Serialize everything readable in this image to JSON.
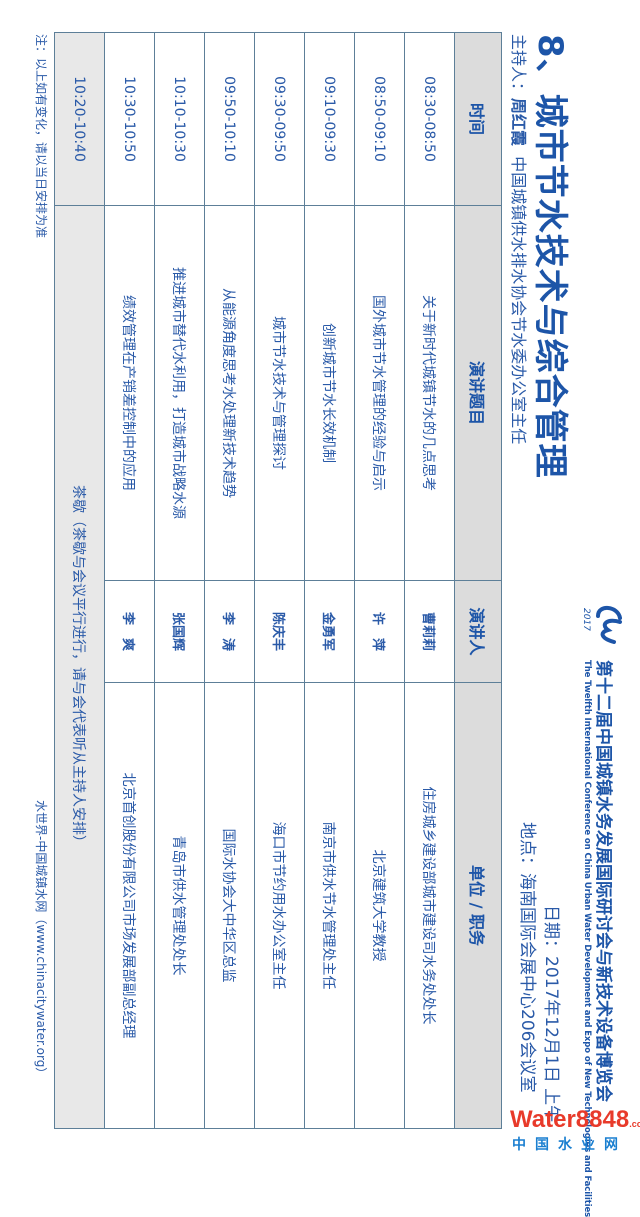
{
  "header": {
    "title": "8、城市节水技术与综合管理",
    "host_label": "主持人：",
    "host_name": "周红霞",
    "host_title": "中国城镇供水排水协会节水委办公室主任",
    "conference_cn": "第十二届中国城镇水务发展国际研讨会与新技术设备博览会",
    "conference_en": "The Twelfth International Conference on China Urban Water Development and Expo of New Technologies and Facilities",
    "date": "日期：2017年12月1日 上午",
    "location": "地点：海南国际会展中心206会议室",
    "logo_text": "cw 2017"
  },
  "table": {
    "columns": [
      "时间",
      "演讲题目",
      "演讲人",
      "单位 / 职务"
    ],
    "rows": [
      {
        "time": "08:30-08:50",
        "topic": "关于新时代城镇节水的几点思考",
        "speaker": "曹莉莉",
        "unit": "住房城乡建设部城市建设司水务处处长"
      },
      {
        "time": "08:50-09:10",
        "topic": "国外城市节水管理的经验与启示",
        "speaker": "许　萍",
        "unit": "北京建筑大学教授"
      },
      {
        "time": "09:10-09:30",
        "topic": "创新城市节水长效机制",
        "speaker": "金勇军",
        "unit": "南京市供水节水管理处主任"
      },
      {
        "time": "09:30-09:50",
        "topic": "城市节水技术与管理探讨",
        "speaker": "陈庆丰",
        "unit": "海口市节约用水办公室主任"
      },
      {
        "time": "09:50-10:10",
        "topic": "从能源角度思考水处理新技术趋势",
        "speaker": "李　涛",
        "unit": "国际水协会大中华区总监"
      },
      {
        "time": "10:10-10:30",
        "topic": "推进城市替代水利用，打造城市战略水源",
        "speaker": "张国辉",
        "unit": "青岛市供水管理处处长"
      },
      {
        "time": "10:30-10:50",
        "topic": "绩效管理在产销差控制中的应用",
        "speaker": "李　爽",
        "unit": "北京首创股份有限公司市场发展部副总经理"
      }
    ],
    "break_row": {
      "time": "10:20-10:40",
      "text": "茶歇（茶歇与会议平行进行，请与会代表听从主持人安排）"
    }
  },
  "footer": {
    "note": "注：以上如有变化，请以当日安排为准",
    "site": "水世界-中国城镇水网（www.chinacitywater.org）"
  },
  "watermark": {
    "brand": "Water8848",
    "suffix": ".com",
    "cn": "中国水业网"
  },
  "colors": {
    "text_blue": "#2a5aa8",
    "title_blue": "#1d55a8",
    "header_bg": "#dcdcdc",
    "border": "#5d7f98"
  }
}
